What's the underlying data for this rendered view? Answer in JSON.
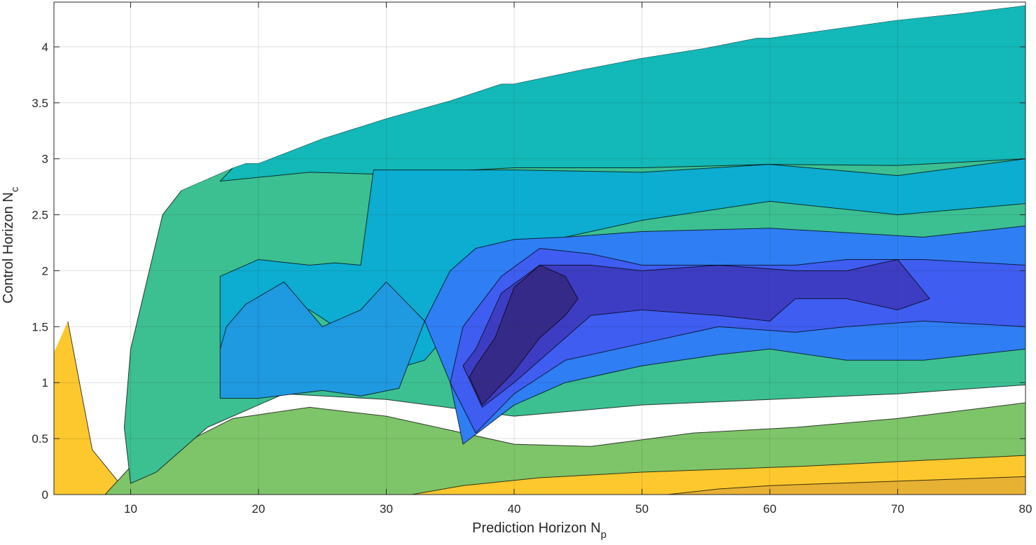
{
  "chart_data": {
    "type": "contour",
    "xlabel": "Prediction Horizon N",
    "xlabel_subscript": "p",
    "ylabel": "Control Horizon N",
    "ylabel_subscript": "c",
    "xlim": [
      4,
      80
    ],
    "ylim": [
      0,
      4.4
    ],
    "x_ticks": [
      10,
      20,
      30,
      40,
      50,
      60,
      70,
      80
    ],
    "y_ticks": [
      0,
      0.5,
      1,
      1.5,
      2,
      2.5,
      3,
      3.5,
      4
    ],
    "y_tick_labels": [
      "0",
      "0.5",
      "1",
      "1.5",
      "2",
      "2.5",
      "3",
      "3.5",
      "4"
    ],
    "grid": true,
    "colormap": "parula",
    "colormap_stops": [
      "#352a87",
      "#3d3dc4",
      "#3f5df0",
      "#2f7ef4",
      "#1f99e0",
      "#0cadd1",
      "#13b8b8",
      "#3cc092",
      "#7ec569",
      "#bbbc45",
      "#e7b134",
      "#fdc82e",
      "#f9fb0e"
    ],
    "filled_region_upper_boundary": [
      [
        4,
        1.27
      ],
      [
        6,
        1.78
      ],
      [
        8,
        2.12
      ],
      [
        10,
        2.38
      ],
      [
        12,
        2.58
      ],
      [
        14,
        2.72
      ],
      [
        16,
        2.82
      ],
      [
        18,
        2.92
      ],
      [
        19,
        2.96
      ],
      [
        20,
        2.96
      ],
      [
        25,
        3.18
      ],
      [
        30,
        3.36
      ],
      [
        35,
        3.52
      ],
      [
        39,
        3.67
      ],
      [
        40,
        3.67
      ],
      [
        45,
        3.79
      ],
      [
        50,
        3.9
      ],
      [
        55,
        3.99
      ],
      [
        59,
        4.08
      ],
      [
        60,
        4.08
      ],
      [
        65,
        4.16
      ],
      [
        70,
        4.24
      ],
      [
        75,
        4.3
      ],
      [
        80,
        4.37
      ]
    ],
    "regions": [
      {
        "level": 5,
        "polygon": [
          [
            4,
            0
          ],
          [
            80,
            0
          ],
          [
            80,
            0.38
          ],
          [
            50,
            0.3
          ],
          [
            44,
            0.26
          ],
          [
            38,
            0.22
          ],
          [
            34,
            0.18
          ],
          [
            30,
            0.15
          ],
          [
            26,
            0.13
          ],
          [
            20,
            0.11
          ],
          [
            16,
            0.09
          ],
          [
            12,
            0.07
          ],
          [
            9.5,
            0.05
          ],
          [
            7,
            0.4
          ],
          [
            6,
            1
          ],
          [
            5,
            1.6
          ],
          [
            4,
            1.3
          ]
        ]
      },
      {
        "level": 4,
        "polygon": [
          [
            80,
            0
          ],
          [
            80,
            0.16
          ],
          [
            70,
            0.12
          ],
          [
            60,
            0.08
          ],
          [
            56,
            0.05
          ],
          [
            52,
            0
          ]
        ]
      },
      {
        "level": 3,
        "polygon": [
          [
            16,
            0.3
          ],
          [
            20,
            0.45
          ],
          [
            26,
            0.62
          ],
          [
            30,
            0.55
          ],
          [
            33,
            0.35
          ],
          [
            34,
            0.1
          ],
          [
            26,
            0.06
          ],
          [
            18,
            0.15
          ]
        ]
      },
      {
        "level": 2,
        "polygon": [
          [
            8,
            0
          ],
          [
            10,
            0.25
          ],
          [
            14,
            0.45
          ],
          [
            18,
            0.68
          ],
          [
            24,
            0.78
          ],
          [
            30,
            0.7
          ],
          [
            36,
            0.55
          ],
          [
            40,
            0.45
          ],
          [
            46,
            0.43
          ],
          [
            54,
            0.55
          ],
          [
            62,
            0.6
          ],
          [
            70,
            0.68
          ],
          [
            80,
            0.82
          ],
          [
            80,
            0.35
          ],
          [
            62,
            0.25
          ],
          [
            50,
            0.2
          ],
          [
            42,
            0.15
          ],
          [
            36,
            0.08
          ],
          [
            32,
            0
          ]
        ]
      },
      {
        "level": 1,
        "polygon": [
          [
            9.5,
            0.6
          ],
          [
            10,
            1.3
          ],
          [
            12.5,
            2.5
          ],
          [
            14,
            2.72
          ],
          [
            16,
            2.82
          ],
          [
            18,
            2.92
          ],
          [
            80,
            3.0
          ],
          [
            80,
            0.98
          ],
          [
            70,
            0.9
          ],
          [
            60,
            0.85
          ],
          [
            50,
            0.8
          ],
          [
            40,
            0.7
          ],
          [
            30,
            0.85
          ],
          [
            22,
            0.9
          ],
          [
            16,
            0.6
          ],
          [
            12,
            0.2
          ],
          [
            10,
            0.1
          ]
        ]
      },
      {
        "level": 0,
        "polygon": [
          [
            18,
            2.92
          ],
          [
            19,
            2.96
          ],
          [
            20,
            2.96
          ],
          [
            25,
            3.18
          ],
          [
            30,
            3.36
          ],
          [
            35,
            3.52
          ],
          [
            39,
            3.67
          ],
          [
            40,
            3.67
          ],
          [
            45,
            3.79
          ],
          [
            50,
            3.9
          ],
          [
            55,
            3.99
          ],
          [
            59,
            4.08
          ],
          [
            60,
            4.08
          ],
          [
            65,
            4.16
          ],
          [
            70,
            4.24
          ],
          [
            75,
            4.3
          ],
          [
            80,
            4.37
          ],
          [
            80,
            3.0
          ],
          [
            70,
            2.94
          ],
          [
            60,
            2.95
          ],
          [
            50,
            2.92
          ],
          [
            40,
            2.92
          ],
          [
            30,
            2.86
          ],
          [
            24,
            2.88
          ],
          [
            17,
            2.8
          ]
        ]
      },
      {
        "level": -1,
        "polygon": [
          [
            17,
            1.95
          ],
          [
            20,
            2.1
          ],
          [
            24,
            2.05
          ],
          [
            26,
            2.07
          ],
          [
            28,
            2.05
          ],
          [
            29,
            2.9
          ],
          [
            40,
            2.9
          ],
          [
            50,
            2.88
          ],
          [
            60,
            2.95
          ],
          [
            70,
            2.85
          ],
          [
            80,
            3.0
          ],
          [
            80,
            2.6
          ],
          [
            70,
            2.5
          ],
          [
            60,
            2.62
          ],
          [
            50,
            2.45
          ],
          [
            44,
            2.3
          ],
          [
            40,
            2.1
          ],
          [
            36,
            1.6
          ],
          [
            33,
            1.2
          ],
          [
            30,
            1.1
          ],
          [
            28,
            1.6
          ],
          [
            26,
            1.5
          ],
          [
            24,
            1.65
          ],
          [
            20,
            1.72
          ],
          [
            18,
            1.55
          ],
          [
            17,
            1.3
          ]
        ]
      },
      {
        "level": -2,
        "polygon": [
          [
            17,
            1.3
          ],
          [
            17,
            0.86
          ],
          [
            20,
            0.86
          ],
          [
            25,
            0.93
          ],
          [
            28,
            0.88
          ],
          [
            31,
            0.95
          ],
          [
            33,
            1.55
          ],
          [
            30,
            1.9
          ],
          [
            28,
            1.65
          ],
          [
            25,
            1.5
          ],
          [
            22,
            1.9
          ],
          [
            19,
            1.7
          ],
          [
            17.5,
            1.5
          ]
        ]
      },
      {
        "level": -3,
        "polygon": [
          [
            33,
            1.55
          ],
          [
            35,
            1.0
          ],
          [
            36,
            0.45
          ],
          [
            40,
            0.8
          ],
          [
            44,
            1.0
          ],
          [
            50,
            1.15
          ],
          [
            56,
            1.25
          ],
          [
            60,
            1.3
          ],
          [
            66,
            1.2
          ],
          [
            72,
            1.2
          ],
          [
            80,
            1.3
          ],
          [
            80,
            2.4
          ],
          [
            72,
            2.3
          ],
          [
            60,
            2.38
          ],
          [
            50,
            2.35
          ],
          [
            44,
            2.3
          ],
          [
            40,
            2.28
          ],
          [
            37,
            2.2
          ],
          [
            35,
            2.0
          ]
        ]
      },
      {
        "level": -4,
        "polygon": [
          [
            35,
            1.0
          ],
          [
            37,
            0.55
          ],
          [
            40,
            0.9
          ],
          [
            44,
            1.2
          ],
          [
            50,
            1.35
          ],
          [
            56,
            1.5
          ],
          [
            62,
            1.45
          ],
          [
            66,
            1.5
          ],
          [
            72,
            1.55
          ],
          [
            80,
            1.5
          ],
          [
            80,
            2.05
          ],
          [
            72,
            2.1
          ],
          [
            66,
            2.1
          ],
          [
            62,
            2.05
          ],
          [
            56,
            2.05
          ],
          [
            50,
            2.05
          ],
          [
            46,
            2.15
          ],
          [
            42,
            2.2
          ],
          [
            39,
            1.95
          ],
          [
            36,
            1.5
          ]
        ]
      },
      {
        "level": -5,
        "polygon": [
          [
            36,
            1.15
          ],
          [
            37.5,
            0.78
          ],
          [
            40,
            1.0
          ],
          [
            43,
            1.3
          ],
          [
            46,
            1.6
          ],
          [
            50,
            1.65
          ],
          [
            56,
            1.6
          ],
          [
            60,
            1.55
          ],
          [
            62,
            1.75
          ],
          [
            66,
            1.75
          ],
          [
            70,
            1.65
          ],
          [
            72.5,
            1.75
          ],
          [
            70,
            2.1
          ],
          [
            66,
            2.0
          ],
          [
            62,
            2.0
          ],
          [
            56,
            2.05
          ],
          [
            50,
            2.0
          ],
          [
            46,
            2.05
          ],
          [
            42,
            2.05
          ],
          [
            39,
            1.8
          ],
          [
            37,
            1.3
          ]
        ]
      },
      {
        "level": -6,
        "polygon": [
          [
            36.5,
            1.05
          ],
          [
            37.5,
            0.8
          ],
          [
            40,
            1.1
          ],
          [
            42,
            1.4
          ],
          [
            44,
            1.6
          ],
          [
            45,
            1.75
          ],
          [
            44,
            1.95
          ],
          [
            42,
            2.05
          ],
          [
            40,
            1.85
          ],
          [
            38.5,
            1.4
          ],
          [
            37,
            1.15
          ]
        ]
      }
    ]
  }
}
